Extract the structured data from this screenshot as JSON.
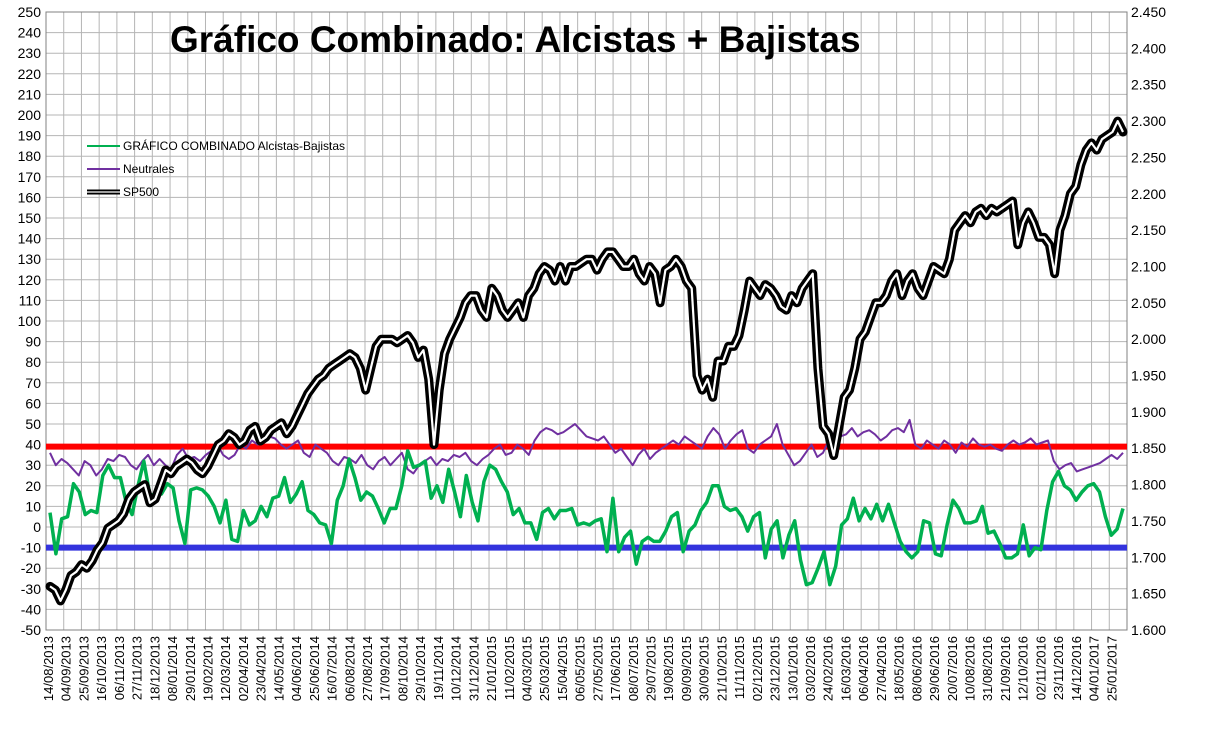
{
  "chart_data": {
    "type": "line",
    "title": "Gráfico Combinado: Alcistas + Bajistas",
    "xlabel": "",
    "ylabel": "",
    "y_left": {
      "min": -50,
      "max": 250,
      "step": 10,
      "ticks": [
        "250",
        "240",
        "230",
        "220",
        "210",
        "200",
        "190",
        "180",
        "170",
        "160",
        "150",
        "140",
        "130",
        "120",
        "110",
        "100",
        "90",
        "80",
        "70",
        "60",
        "50",
        "40",
        "30",
        "20",
        "10",
        "0",
        "-10",
        "-20",
        "-30",
        "-40",
        "-50"
      ]
    },
    "y_right": {
      "min": 1600,
      "max": 2450,
      "step": 50,
      "ticks": [
        "2.450",
        "2.400",
        "2.350",
        "2.300",
        "2.250",
        "2.200",
        "2.150",
        "2.100",
        "2.050",
        "2.000",
        "1.950",
        "1.900",
        "1.850",
        "1.800",
        "1.750",
        "1.700",
        "1.650",
        "1.600"
      ]
    },
    "grid": true,
    "legend_position": "top-left",
    "x_tick_labels": [
      "14/08/2013",
      "04/09/2013",
      "25/09/2013",
      "16/10/2013",
      "06/11/2013",
      "27/11/2013",
      "18/12/2013",
      "08/01/2014",
      "29/01/2014",
      "19/02/2014",
      "12/03/2014",
      "02/04/2014",
      "23/04/2014",
      "14/05/2014",
      "04/06/2014",
      "25/06/2014",
      "16/07/2014",
      "06/08/2014",
      "27/08/2014",
      "17/09/2014",
      "08/10/2014",
      "29/10/2014",
      "19/11/2014",
      "10/12/2014",
      "31/12/2014",
      "21/01/2015",
      "11/02/2015",
      "04/03/2015",
      "25/03/2015",
      "15/04/2015",
      "06/05/2015",
      "27/05/2015",
      "17/06/2015",
      "08/07/2015",
      "29/07/2015",
      "19/08/2015",
      "09/09/2015",
      "30/09/2015",
      "21/10/2015",
      "11/11/2015",
      "02/12/2015",
      "23/12/2015",
      "13/01/2016",
      "03/02/2016",
      "24/02/2016",
      "16/03/2016",
      "06/04/2016",
      "27/04/2016",
      "18/05/2016",
      "08/06/2016",
      "29/06/2016",
      "20/07/2016",
      "10/08/2016",
      "31/08/2016",
      "21/09/2016",
      "12/10/2016",
      "02/11/2016",
      "23/11/2016",
      "14/12/2016",
      "04/01/2017",
      "25/01/2017"
    ],
    "reference_lines": [
      {
        "axis": "left",
        "value": 39,
        "color": "#ff0000"
      },
      {
        "axis": "left",
        "value": -10,
        "color": "#3333dd"
      }
    ],
    "series": [
      {
        "name": "GRÁFICO COMBINADO Alcistas-Bajistas",
        "axis": "left",
        "color": "#00b050",
        "values": [
          7,
          -13,
          4,
          5,
          21,
          17,
          6,
          8,
          7,
          25,
          30,
          24,
          24,
          12,
          6,
          20,
          32,
          16,
          15,
          16,
          21,
          19,
          3,
          -8,
          18,
          19,
          18,
          15,
          10,
          2,
          13,
          -6,
          -7,
          8,
          1,
          3,
          10,
          5,
          14,
          15,
          24,
          12,
          16,
          22,
          8,
          6,
          2,
          1,
          -8,
          13,
          20,
          33,
          24,
          13,
          17,
          15,
          9,
          2,
          9,
          9,
          20,
          37,
          29,
          30,
          32,
          14,
          20,
          12,
          28,
          17,
          5,
          25,
          12,
          3,
          22,
          30,
          28,
          22,
          17,
          6,
          9,
          2,
          2,
          -6,
          7,
          9,
          4,
          8,
          8,
          9,
          1,
          2,
          1,
          3,
          4,
          -12,
          14,
          -12,
          -5,
          -2,
          -18,
          -7,
          -5,
          -7,
          -7,
          -2,
          5,
          7,
          -12,
          -2,
          1,
          8,
          12,
          20,
          20,
          10,
          8,
          9,
          5,
          -2,
          5,
          7,
          -15,
          -1,
          3,
          -15,
          -4,
          3,
          -16,
          -28,
          -27,
          -20,
          -12,
          -28,
          -19,
          1,
          4,
          14,
          3,
          9,
          4,
          11,
          3,
          11,
          2,
          -7,
          -12,
          -15,
          -12,
          3,
          2,
          -13,
          -14,
          1,
          13,
          9,
          2,
          2,
          3,
          10,
          -3,
          -2,
          -8,
          -15,
          -15,
          -13,
          1,
          -14,
          -10,
          -11,
          8,
          22,
          27,
          20,
          18,
          13,
          17,
          20,
          21,
          17,
          5,
          -4,
          -1,
          9
        ]
      },
      {
        "name": "Neutrales",
        "axis": "left",
        "color": "#7030a0",
        "values": [
          36,
          30,
          33,
          31,
          28,
          25,
          32,
          30,
          25,
          28,
          33,
          32,
          35,
          34,
          30,
          28,
          32,
          35,
          30,
          33,
          30,
          28,
          35,
          38,
          33,
          34,
          32,
          35,
          37,
          40,
          35,
          33,
          35,
          40,
          38,
          42,
          40,
          43,
          44,
          43,
          40,
          38,
          40,
          42,
          36,
          34,
          40,
          38,
          36,
          32,
          30,
          34,
          33,
          31,
          35,
          30,
          28,
          32,
          34,
          30,
          33,
          36,
          28,
          26,
          30,
          32,
          34,
          30,
          33,
          32,
          35,
          34,
          36,
          32,
          30,
          33,
          35,
          38,
          40,
          35,
          36,
          40,
          38,
          35,
          42,
          46,
          48,
          47,
          45,
          46,
          48,
          50,
          47,
          44,
          43,
          42,
          44,
          40,
          36,
          38,
          34,
          30,
          35,
          38,
          33,
          36,
          38,
          40,
          42,
          40,
          44,
          42,
          40,
          38,
          44,
          48,
          45,
          38,
          42,
          45,
          47,
          38,
          36,
          40,
          42,
          44,
          50,
          40,
          35,
          30,
          32,
          36,
          40,
          34,
          36,
          42,
          46,
          44,
          45,
          48,
          44,
          46,
          47,
          45,
          42,
          44,
          47,
          48,
          46,
          52,
          40,
          38,
          42,
          40,
          38,
          42,
          40,
          36,
          41,
          39,
          43,
          40,
          39,
          40,
          38,
          37,
          40,
          42,
          40,
          41,
          43,
          40,
          41,
          42,
          32,
          28,
          30,
          31,
          27,
          28,
          29,
          30,
          31,
          33,
          35,
          33,
          36
        ]
      },
      {
        "name": "SP500",
        "axis": "right",
        "color": "#000000",
        "values": [
          1660,
          1655,
          1640,
          1655,
          1675,
          1680,
          1690,
          1685,
          1695,
          1710,
          1720,
          1740,
          1745,
          1750,
          1760,
          1780,
          1790,
          1795,
          1800,
          1775,
          1780,
          1800,
          1820,
          1815,
          1825,
          1830,
          1835,
          1830,
          1820,
          1815,
          1825,
          1840,
          1855,
          1860,
          1870,
          1865,
          1855,
          1860,
          1875,
          1880,
          1860,
          1865,
          1875,
          1880,
          1885,
          1870,
          1880,
          1895,
          1910,
          1925,
          1935,
          1945,
          1950,
          1960,
          1965,
          1970,
          1975,
          1980,
          1975,
          1960,
          1930,
          1960,
          1990,
          2000,
          2000,
          2000,
          1995,
          2000,
          2005,
          1995,
          1975,
          1985,
          1945,
          1855,
          1930,
          1980,
          2000,
          2015,
          2030,
          2050,
          2060,
          2060,
          2040,
          2030,
          2070,
          2060,
          2040,
          2030,
          2040,
          2050,
          2030,
          2060,
          2070,
          2090,
          2100,
          2095,
          2080,
          2100,
          2080,
          2100,
          2100,
          2105,
          2110,
          2110,
          2095,
          2110,
          2120,
          2120,
          2110,
          2100,
          2100,
          2110,
          2090,
          2080,
          2100,
          2090,
          2050,
          2095,
          2100,
          2110,
          2100,
          2080,
          2070,
          1950,
          1930,
          1945,
          1920,
          1970,
          1970,
          1990,
          1990,
          2005,
          2040,
          2080,
          2070,
          2060,
          2075,
          2070,
          2060,
          2045,
          2040,
          2060,
          2050,
          2070,
          2080,
          2090,
          1960,
          1880,
          1870,
          1840,
          1880,
          1920,
          1930,
          1960,
          2000,
          2010,
          2030,
          2050,
          2050,
          2060,
          2080,
          2090,
          2060,
          2080,
          2090,
          2070,
          2060,
          2080,
          2100,
          2095,
          2090,
          2110,
          2150,
          2160,
          2170,
          2160,
          2175,
          2180,
          2170,
          2180,
          2175,
          2180,
          2185,
          2190,
          2130,
          2160,
          2175,
          2160,
          2140,
          2140,
          2130,
          2090,
          2150,
          2170,
          2200,
          2210,
          2240,
          2260,
          2270,
          2260,
          2275,
          2280,
          2285,
          2300,
          2285
        ]
      }
    ]
  }
}
